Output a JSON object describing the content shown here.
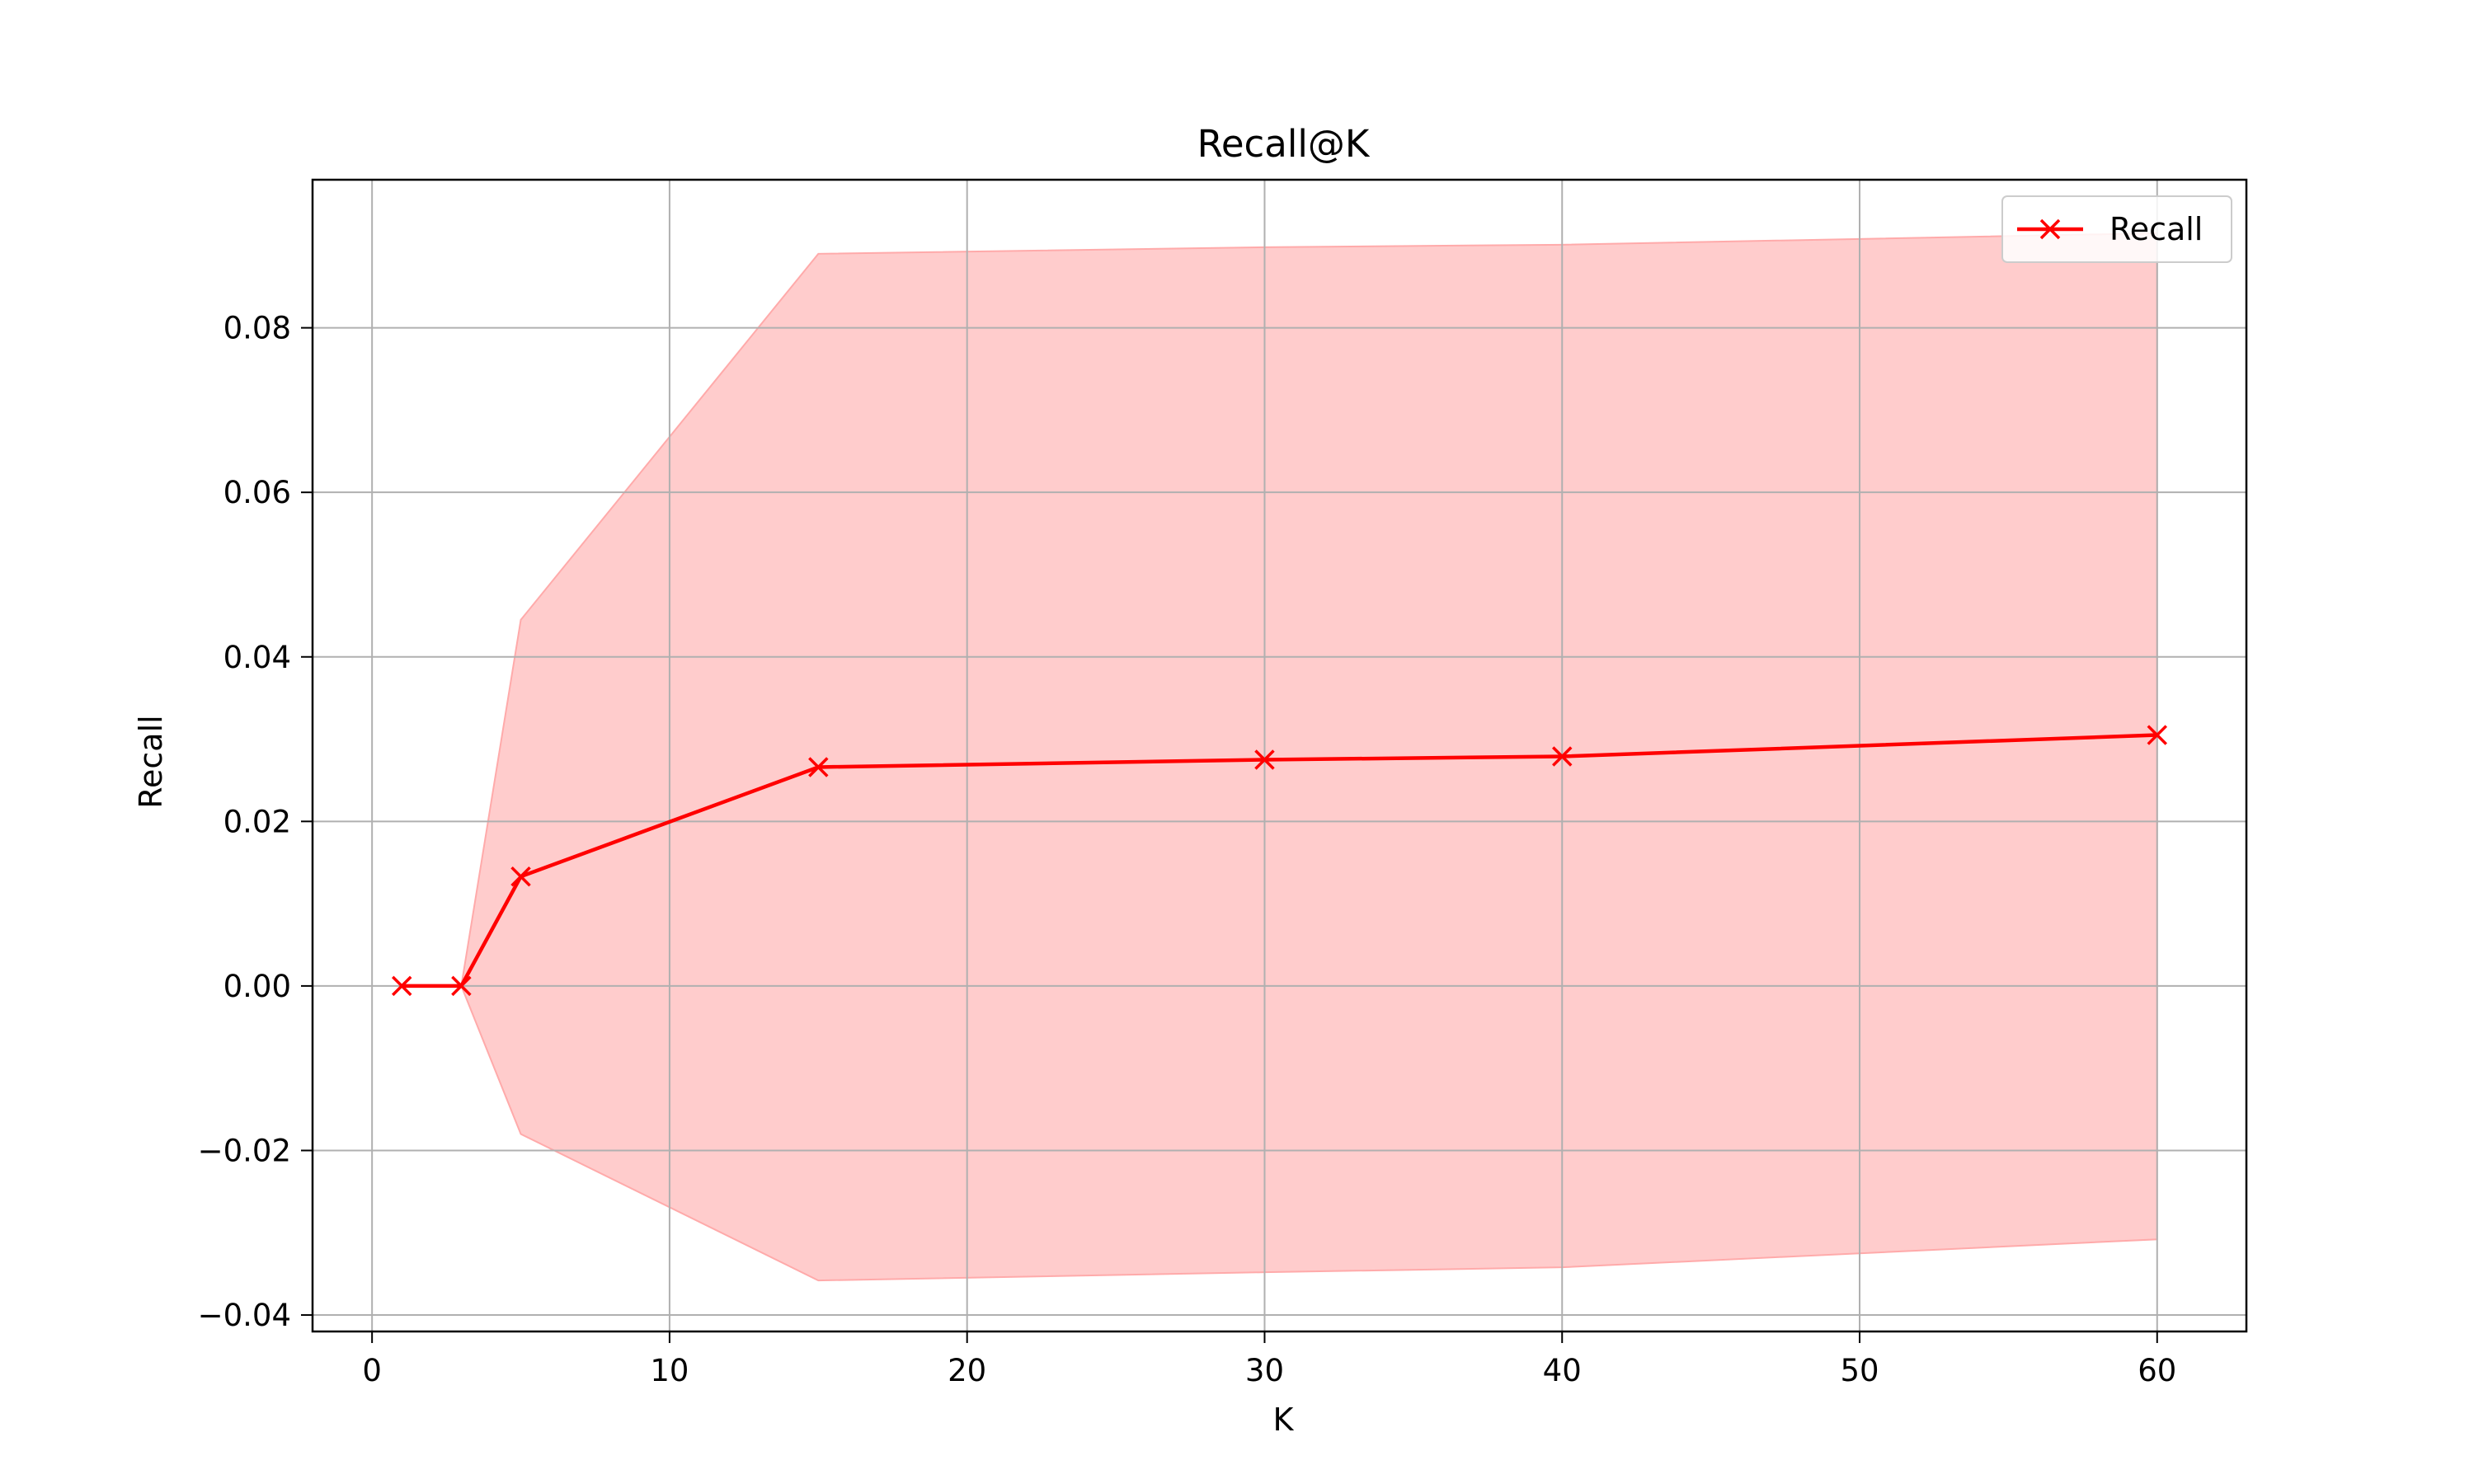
{
  "chart_data": {
    "type": "line",
    "title": "Recall@K",
    "xlabel": "K",
    "ylabel": "Recall",
    "xlim": [
      -2,
      63
    ],
    "ylim": [
      -0.042,
      0.098
    ],
    "xticks": [
      0,
      10,
      20,
      30,
      40,
      50,
      60
    ],
    "xtick_labels": [
      "0",
      "10",
      "20",
      "30",
      "40",
      "50",
      "60"
    ],
    "yticks": [
      -0.04,
      -0.02,
      0.0,
      0.02,
      0.04,
      0.06,
      0.08
    ],
    "ytick_labels": [
      "−0.04",
      "−0.02",
      "0.00",
      "0.02",
      "0.04",
      "0.06",
      "0.08"
    ],
    "grid": true,
    "legend_position": "top-right",
    "series": [
      {
        "name": "Recall",
        "color": "#ff0000",
        "marker": "x",
        "x": [
          1,
          3,
          5,
          15,
          30,
          40,
          60
        ],
        "values": [
          0.0,
          0.0,
          0.0133,
          0.0266,
          0.0275,
          0.0279,
          0.0305
        ],
        "band_upper": [
          0.0,
          0.0,
          0.0445,
          0.089,
          0.0898,
          0.0901,
          0.0915
        ],
        "band_lower": [
          0.0,
          0.0,
          -0.018,
          -0.0358,
          -0.0348,
          -0.0342,
          -0.0308
        ],
        "band_color": "#ffcccc"
      }
    ]
  }
}
